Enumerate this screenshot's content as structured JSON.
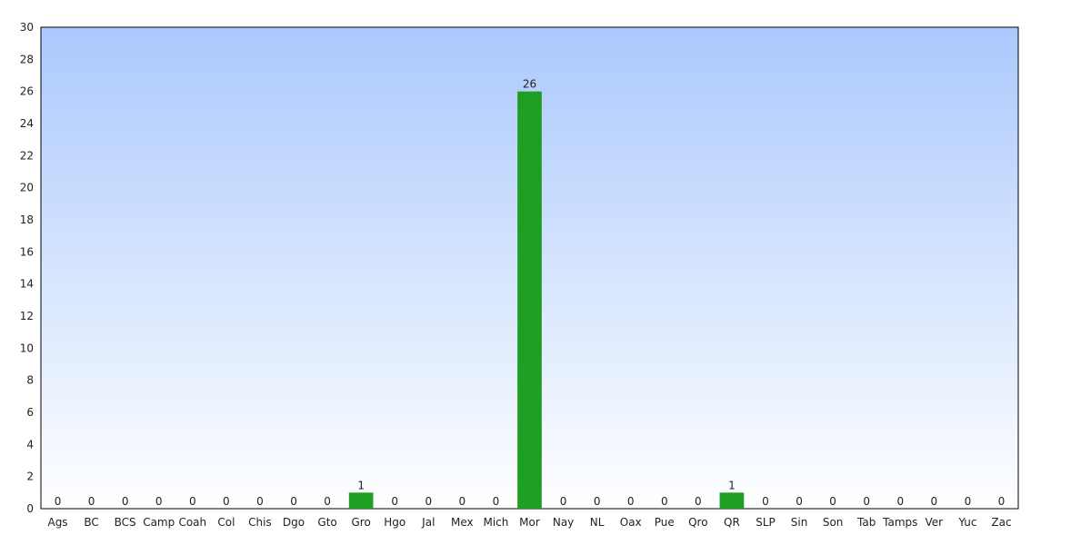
{
  "chart_data": {
    "type": "bar",
    "categories": [
      "Ags",
      "BC",
      "BCS",
      "Camp",
      "Coah",
      "Col",
      "Chis",
      "Dgo",
      "Gto",
      "Gro",
      "Hgo",
      "Jal",
      "Mex",
      "Mich",
      "Mor",
      "Nay",
      "NL",
      "Oax",
      "Pue",
      "Qro",
      "QR",
      "SLP",
      "Sin",
      "Son",
      "Tab",
      "Tamps",
      "Ver",
      "Yuc",
      "Zac"
    ],
    "values": [
      0,
      0,
      0,
      0,
      0,
      0,
      0,
      0,
      0,
      1,
      0,
      0,
      0,
      0,
      26,
      0,
      0,
      0,
      0,
      0,
      1,
      0,
      0,
      0,
      0,
      0,
      0,
      0,
      0
    ],
    "ylim": [
      0,
      30
    ],
    "yticks": [
      0,
      2,
      4,
      6,
      8,
      10,
      12,
      14,
      16,
      18,
      20,
      22,
      24,
      26,
      28,
      30
    ],
    "grid": false,
    "colors": {
      "bar": "#1e9e22",
      "plot_bg_top": "#abc9fd",
      "plot_bg_bottom": "#ffffff",
      "frame": "#000000"
    }
  }
}
